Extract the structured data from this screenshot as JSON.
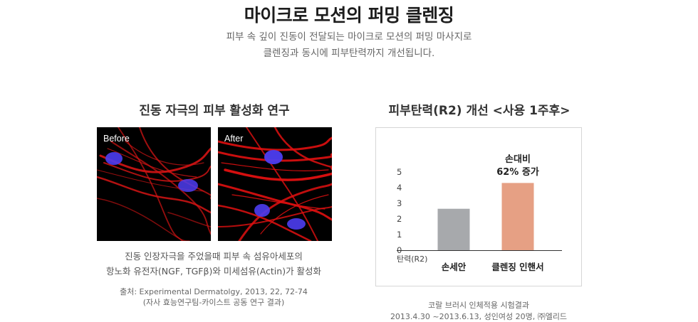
{
  "header": {
    "title": "마이크로 모션의 퍼밍 클렌징",
    "desc_line1": "피부 속 깊이 진동이 전달되는 마이크로 모션의 퍼밍 마사지로",
    "desc_line2": "클렌징과 동시에 피부탄력까지 개선됩니다."
  },
  "left_section": {
    "title": "진동 자극의 피부 활성화 연구",
    "before_label": "Before",
    "after_label": "After",
    "caption_line1": "진동 인장자극을 주었을때 피부 속 섬유아세포의",
    "caption_line2": "항노화 유전자(NGF, TGFβ)와 미세섬유(Actin)가 활성화",
    "source_line1": "출처: Experimental Dermatolgy, 2013, 22, 72-74",
    "source_line2": "(자사 효능연구팀-카이스트 공동 연구 결과)",
    "colors": {
      "fiber": "#e01010",
      "nucleus": "#4d3df0",
      "background": "#000000"
    }
  },
  "right_section": {
    "title": "피부탄력(R2) 개선 <사용 1주후>",
    "note_line1": "코랄 브러시 인체적용 시험결과",
    "note_line2": "2013.4.30 ~2013.6.13, 성인여성 20명, ㈜엘리드"
  },
  "chart_data": {
    "type": "bar",
    "title": "피부탄력(R2) 개선 <사용 1주후>",
    "ylabel": "탄력(R2)",
    "xlabel": "",
    "categories": [
      "손세안",
      "클렌징 인핸서"
    ],
    "values": [
      2.65,
      4.3
    ],
    "colors": [
      "#a7a9ac",
      "#e6a084"
    ],
    "ylim": [
      0,
      5
    ],
    "yticks": [
      "0",
      "1",
      "2",
      "3",
      "4",
      "5"
    ],
    "annotation": {
      "line1": "손대비",
      "line2": "62% 증가",
      "category_index": 1
    },
    "grid": false
  }
}
